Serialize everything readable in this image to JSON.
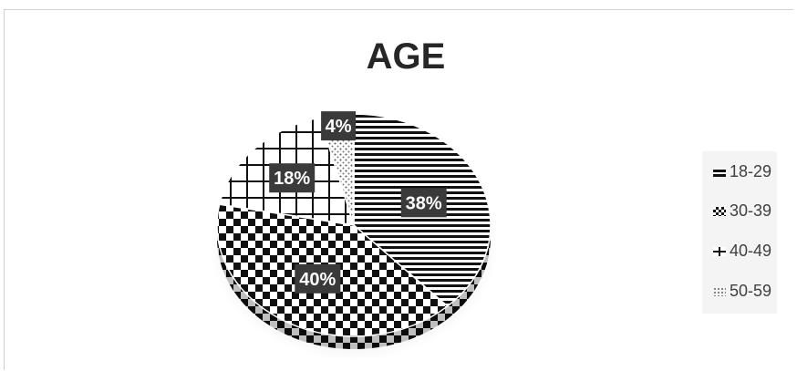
{
  "chart_data": {
    "type": "pie",
    "title": "AGE",
    "categories": [
      "18-29",
      "30-39",
      "40-49",
      "50-59"
    ],
    "values": [
      38,
      40,
      18,
      4
    ],
    "data_labels": [
      "38%",
      "40%",
      "18%",
      "4%"
    ],
    "legend": [
      "18-29",
      "30-39",
      "40-49",
      "50-59"
    ],
    "legend_position": "right",
    "style": "3d",
    "patterns": [
      "horizontal-lines",
      "checkerboard",
      "grid",
      "dots"
    ]
  }
}
